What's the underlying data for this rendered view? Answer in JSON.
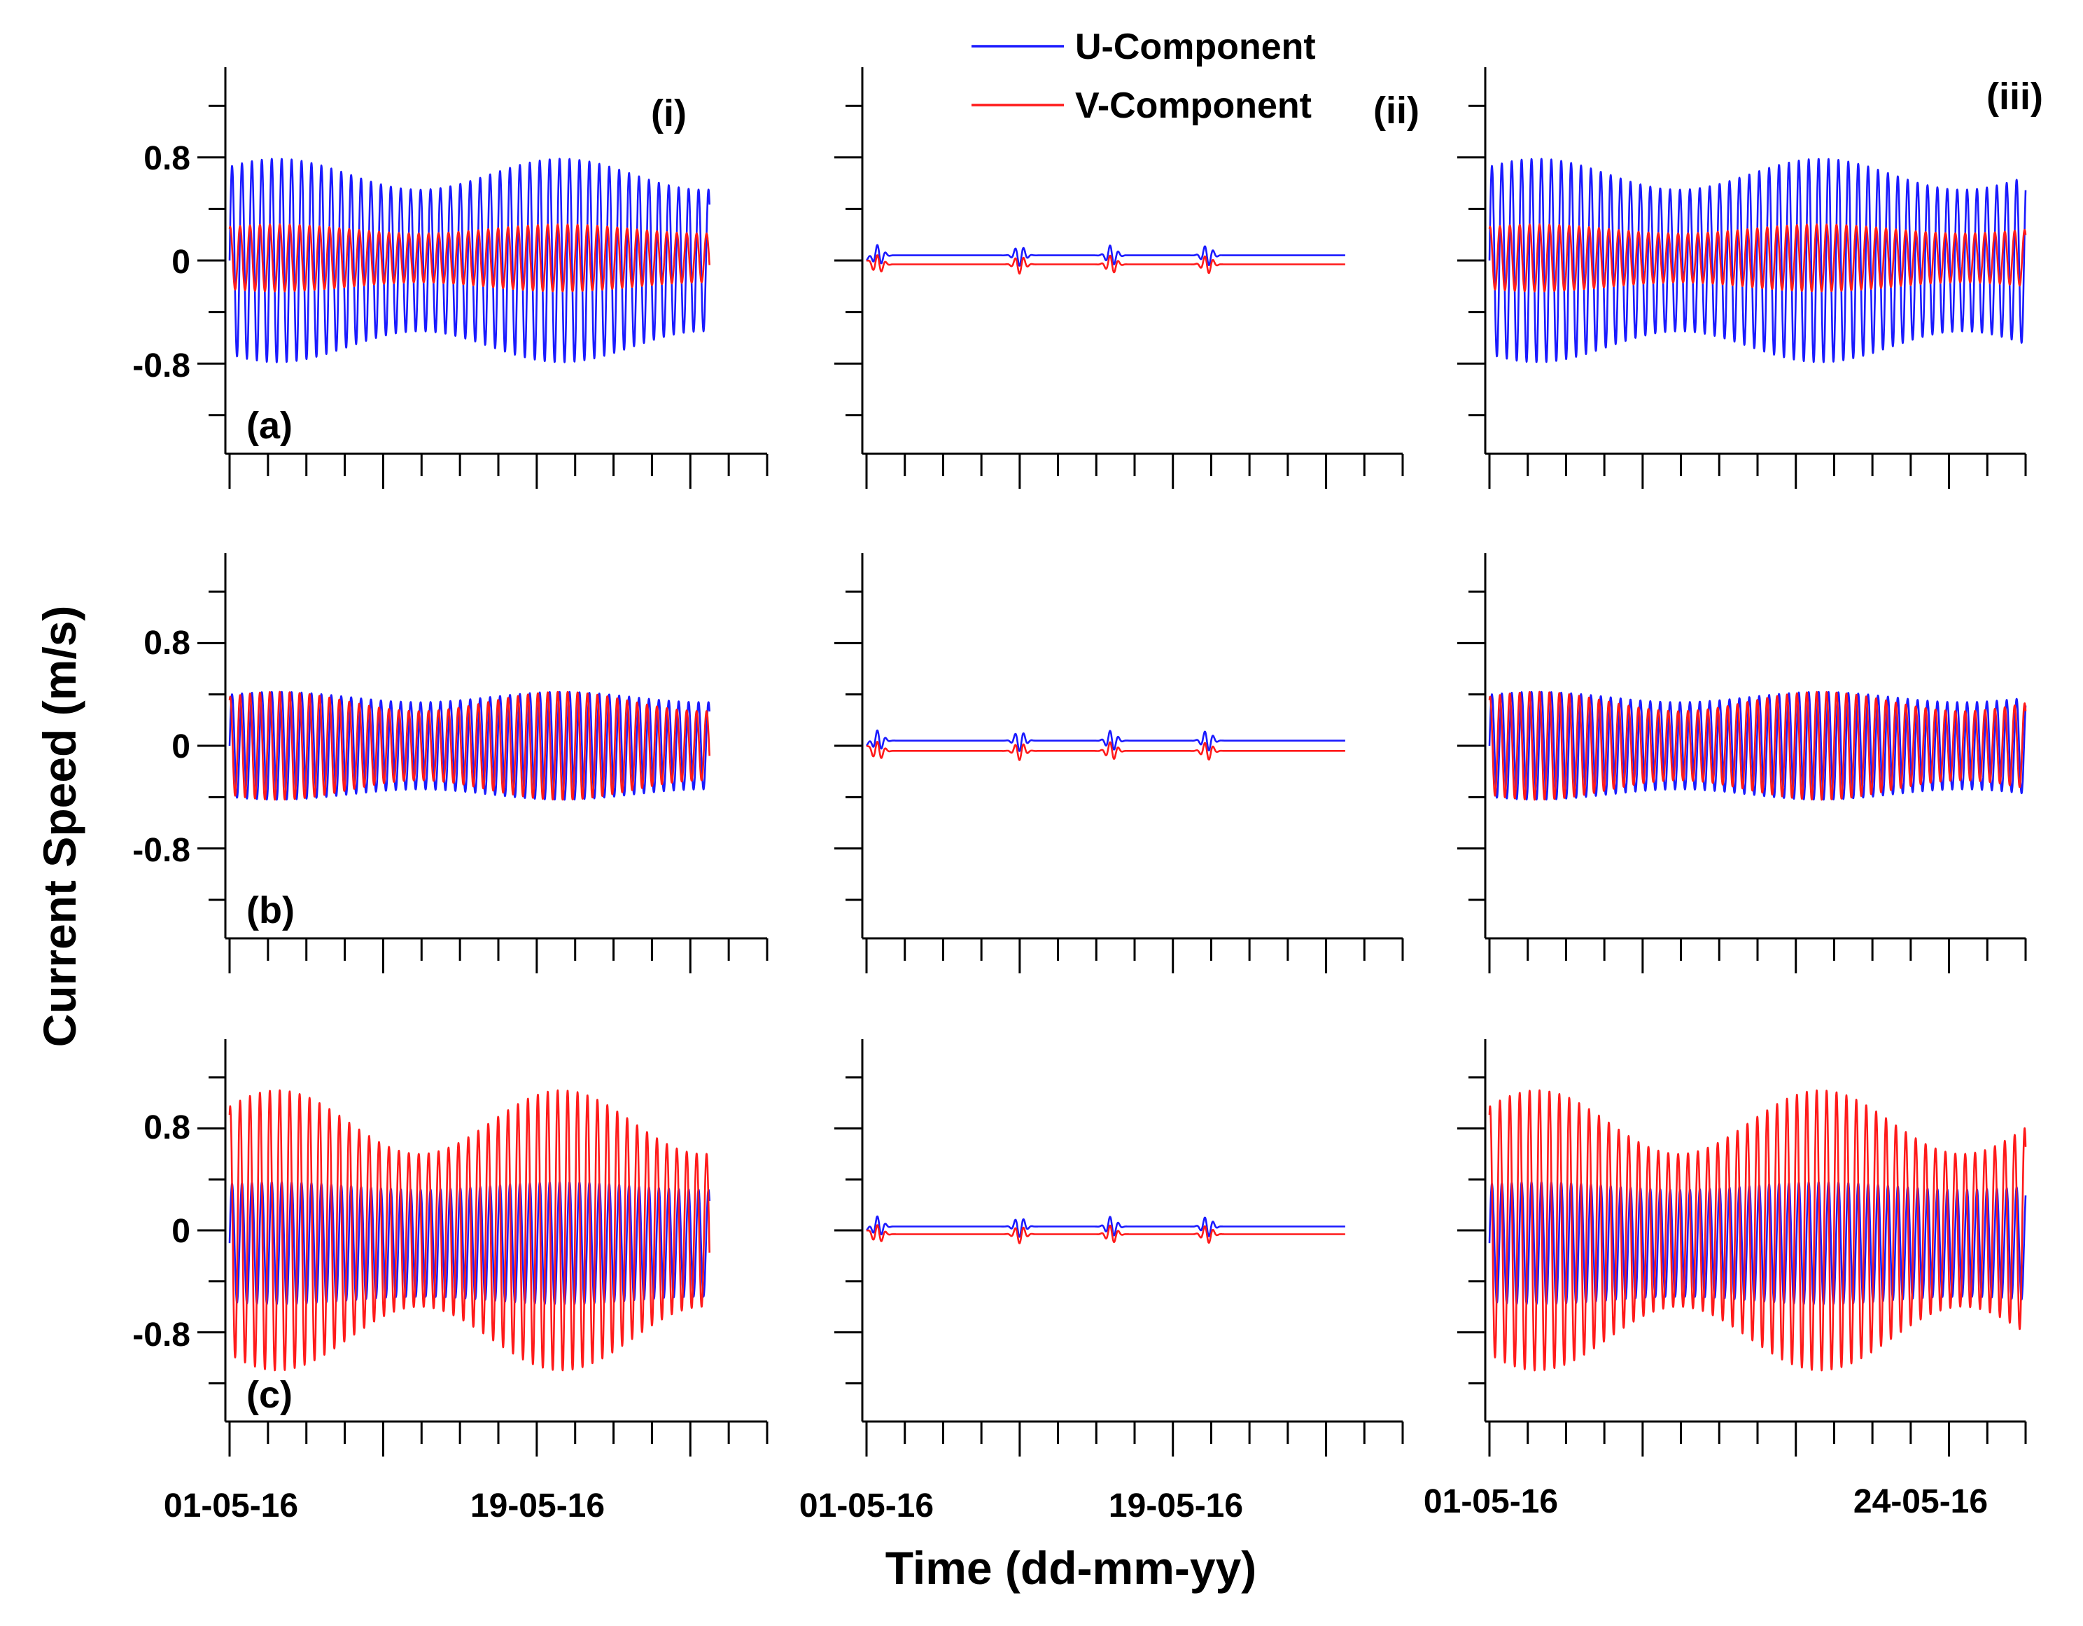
{
  "figure": {
    "ylabel": "Current Speed (m/s)",
    "xlabel": "Time (dd-mm-yy)",
    "legend": [
      {
        "label": "U-Component",
        "color": "#1a1aff"
      },
      {
        "label": "V-Component",
        "color": "#ff1a1a"
      }
    ],
    "column_labels": [
      "(i)",
      "(ii)",
      "(iii)"
    ],
    "row_labels": [
      "(a)",
      "(b)",
      "(c)"
    ],
    "y_tick_labels": [
      "0.8",
      "0",
      "-0.8"
    ],
    "x_tick_labels": [
      [
        "01-05-16",
        "19-05-16"
      ],
      [
        "01-05-16",
        "19-05-16"
      ],
      [
        "01-05-16",
        "24-05-16"
      ]
    ]
  },
  "chart_data": {
    "type": "line",
    "layout": "3x3 grid of small multiples (rows a-c, columns i-iii)",
    "y_unit": "m/s",
    "yticks": [
      -0.8,
      0,
      0.8
    ],
    "ylim": [
      -1.5,
      1.5
    ],
    "x_unit": "days since 01-05-16",
    "grid": false,
    "legend_position": "top-center",
    "panels": [
      {
        "row": "(a)",
        "col": "(i)",
        "xlim": [
          0,
          28
        ],
        "data_end": 25,
        "series": [
          {
            "name": "U-Component",
            "color": "#1a1aff",
            "mean": 0.0,
            "amp_range": [
              0.55,
              0.79
            ]
          },
          {
            "name": "V-Component",
            "color": "#ff1a1a",
            "mean": 0.02,
            "amp_range": [
              0.19,
              0.26
            ]
          }
        ]
      },
      {
        "row": "(a)",
        "col": "(ii)",
        "xlim": [
          0,
          28
        ],
        "data_end": 25,
        "series": [
          {
            "name": "U-Component",
            "color": "#1a1aff",
            "mean": 0.04,
            "amp_range": [
              0.0,
              0.09
            ]
          },
          {
            "name": "V-Component",
            "color": "#ff1a1a",
            "mean": -0.03,
            "amp_range": [
              0.0,
              0.08
            ]
          }
        ]
      },
      {
        "row": "(a)",
        "col": "(iii)",
        "xlim": [
          0,
          28
        ],
        "data_end": 28,
        "series": [
          {
            "name": "U-Component",
            "color": "#1a1aff",
            "mean": 0.0,
            "amp_range": [
              0.55,
              0.79
            ]
          },
          {
            "name": "V-Component",
            "color": "#ff1a1a",
            "mean": 0.02,
            "amp_range": [
              0.19,
              0.26
            ]
          }
        ]
      },
      {
        "row": "(b)",
        "col": "(i)",
        "xlim": [
          0,
          28
        ],
        "data_end": 25,
        "series": [
          {
            "name": "U-Component",
            "color": "#1a1aff",
            "mean": 0.0,
            "amp_range": [
              0.34,
              0.42
            ]
          },
          {
            "name": "V-Component",
            "color": "#ff1a1a",
            "mean": 0.0,
            "amp_range": [
              0.27,
              0.42
            ]
          }
        ]
      },
      {
        "row": "(b)",
        "col": "(ii)",
        "xlim": [
          0,
          28
        ],
        "data_end": 25,
        "series": [
          {
            "name": "U-Component",
            "color": "#1a1aff",
            "mean": 0.04,
            "amp_range": [
              0.0,
              0.09
            ]
          },
          {
            "name": "V-Component",
            "color": "#ff1a1a",
            "mean": -0.04,
            "amp_range": [
              0.0,
              0.08
            ]
          }
        ]
      },
      {
        "row": "(b)",
        "col": "(iii)",
        "xlim": [
          0,
          28
        ],
        "data_end": 28,
        "series": [
          {
            "name": "U-Component",
            "color": "#1a1aff",
            "mean": 0.0,
            "amp_range": [
              0.34,
              0.42
            ]
          },
          {
            "name": "V-Component",
            "color": "#ff1a1a",
            "mean": 0.0,
            "amp_range": [
              0.27,
              0.42
            ]
          }
        ]
      },
      {
        "row": "(c)",
        "col": "(i)",
        "xlim": [
          0,
          28
        ],
        "data_end": 25,
        "series": [
          {
            "name": "U-Component",
            "color": "#1a1aff",
            "mean": -0.1,
            "amp_range": [
              0.42,
              0.48
            ]
          },
          {
            "name": "V-Component",
            "color": "#ff1a1a",
            "mean": 0.0,
            "amp_range": [
              0.6,
              1.1
            ]
          }
        ]
      },
      {
        "row": "(c)",
        "col": "(ii)",
        "xlim": [
          0,
          28
        ],
        "data_end": 25,
        "series": [
          {
            "name": "U-Component",
            "color": "#1a1aff",
            "mean": 0.03,
            "amp_range": [
              0.0,
              0.09
            ]
          },
          {
            "name": "V-Component",
            "color": "#ff1a1a",
            "mean": -0.03,
            "amp_range": [
              0.0,
              0.08
            ]
          }
        ]
      },
      {
        "row": "(c)",
        "col": "(iii)",
        "xlim": [
          0,
          28
        ],
        "data_end": 28,
        "series": [
          {
            "name": "U-Component",
            "color": "#1a1aff",
            "mean": -0.1,
            "amp_range": [
              0.42,
              0.48
            ]
          },
          {
            "name": "V-Component",
            "color": "#ff1a1a",
            "mean": 0.0,
            "amp_range": [
              0.6,
              1.1
            ]
          }
        ]
      }
    ]
  }
}
